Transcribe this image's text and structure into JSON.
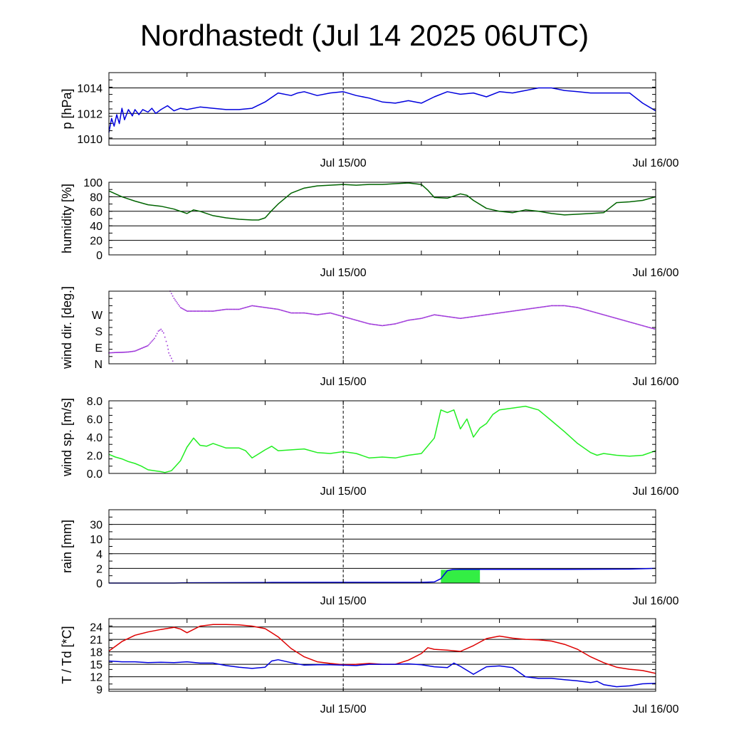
{
  "title": "Nordhastedt (Jul 14 2025 06UTC)",
  "colors": {
    "pressure": "#0000dd",
    "humidity": "#006400",
    "wind_dir": "#9b30d8",
    "wind_speed": "#22ee22",
    "rain_bar": "#33ee44",
    "rain_cum": "#0000dd",
    "temperature": "#dd0000",
    "dewpoint": "#0000dd"
  },
  "chart_data": [
    {
      "type": "line",
      "ylabel": "p [hPa]",
      "ylim": [
        1009.5,
        1015.2
      ],
      "yticks": [
        {
          "v": 1010,
          "label": "1010"
        },
        {
          "v": 1012,
          "label": "1012"
        },
        {
          "v": 1014,
          "label": "1014"
        }
      ],
      "x_labels": [
        {
          "h": 18,
          "label": "Jul 15/00"
        },
        {
          "h": 42,
          "label": "Jul 16/00"
        }
      ],
      "grid": true,
      "series": [
        {
          "color_key": "pressure",
          "style": "line",
          "x": [
            0,
            0.2,
            0.4,
            0.6,
            0.8,
            1,
            1.2,
            1.5,
            1.8,
            2,
            2.3,
            2.6,
            3,
            3.3,
            3.6,
            4,
            4.5,
            5,
            5.5,
            6,
            7,
            8,
            9,
            10,
            11,
            12,
            13,
            14,
            14.5,
            15,
            16,
            17,
            18,
            19,
            20,
            21,
            22,
            23,
            24,
            25,
            26,
            27,
            28,
            29,
            30,
            31,
            32,
            33,
            34,
            35,
            36,
            37,
            38,
            39,
            40,
            41,
            42
          ],
          "y": [
            1010.5,
            1011.6,
            1011.0,
            1011.9,
            1011.2,
            1012.4,
            1011.5,
            1012.3,
            1011.8,
            1012.3,
            1011.9,
            1012.3,
            1012.1,
            1012.4,
            1012.0,
            1012.3,
            1012.6,
            1012.2,
            1012.4,
            1012.3,
            1012.5,
            1012.4,
            1012.3,
            1012.3,
            1012.4,
            1012.9,
            1013.6,
            1013.4,
            1013.6,
            1013.7,
            1013.4,
            1013.6,
            1013.7,
            1013.4,
            1013.2,
            1012.9,
            1012.8,
            1013.0,
            1012.8,
            1013.3,
            1013.7,
            1013.5,
            1013.6,
            1013.3,
            1013.7,
            1013.6,
            1013.8,
            1014.0,
            1014.0,
            1013.8,
            1013.7,
            1013.6,
            1013.6,
            1013.6,
            1013.6,
            1012.8,
            1012.2
          ]
        }
      ]
    },
    {
      "type": "line",
      "ylabel": "humidity [%]",
      "ylim": [
        0,
        100
      ],
      "yticks": [
        {
          "v": 0,
          "label": "0"
        },
        {
          "v": 20,
          "label": "20"
        },
        {
          "v": 40,
          "label": "40"
        },
        {
          "v": 60,
          "label": "60"
        },
        {
          "v": 80,
          "label": "80"
        },
        {
          "v": 100,
          "label": "100"
        }
      ],
      "x_labels": [
        {
          "h": 18,
          "label": "Jul 15/00"
        },
        {
          "h": 42,
          "label": "Jul 16/00"
        }
      ],
      "grid": true,
      "series": [
        {
          "color_key": "humidity",
          "style": "line",
          "x": [
            0,
            1,
            2,
            3,
            4,
            5,
            6,
            6.5,
            7,
            8,
            9,
            10,
            11,
            11.5,
            12,
            12.5,
            13,
            14,
            15,
            16,
            17,
            18,
            19,
            20,
            21,
            22,
            23,
            24,
            24.5,
            25,
            26,
            27,
            27.5,
            28,
            29,
            30,
            31,
            32,
            33,
            34,
            35,
            36,
            37,
            38,
            38.5,
            39,
            40,
            41,
            42
          ],
          "y": [
            88,
            80,
            74,
            69,
            67,
            63,
            57,
            62,
            60,
            54,
            51,
            49,
            48,
            48,
            51,
            61,
            70,
            85,
            92,
            95,
            96,
            97,
            96,
            97,
            97,
            98,
            99,
            97,
            89,
            79,
            78,
            84,
            82,
            75,
            64,
            60,
            58,
            62,
            60,
            57,
            55,
            56,
            57,
            58,
            65,
            72,
            73,
            75,
            80
          ]
        }
      ]
    },
    {
      "type": "scatter",
      "ylabel": "wind dir. [deg.]",
      "ylim": [
        0,
        400
      ],
      "yticks": [
        {
          "v": 0,
          "label": "N"
        },
        {
          "v": 90,
          "label": "E"
        },
        {
          "v": 180,
          "label": "S"
        },
        {
          "v": 270,
          "label": "W"
        }
      ],
      "x_labels": [
        {
          "h": 18,
          "label": "Jul 15/00"
        },
        {
          "h": 42,
          "label": "Jul 16/00"
        }
      ],
      "grid": false,
      "series": [
        {
          "color_key": "wind_dir",
          "style": "dots",
          "x": [
            0,
            0.5,
            1,
            1.5,
            2,
            2.5,
            3,
            3.5,
            3.8,
            4,
            4.2,
            4.5,
            4.6,
            4.8,
            5
          ],
          "y": [
            60,
            62,
            63,
            65,
            70,
            85,
            100,
            140,
            180,
            190,
            170,
            100,
            60,
            30,
            0
          ]
        },
        {
          "color_key": "wind_dir",
          "style": "dots",
          "x": [
            4.7,
            5,
            5.5,
            6,
            7,
            8,
            9,
            10,
            11,
            12,
            13,
            14,
            15,
            16,
            17,
            18,
            19,
            20,
            21,
            22,
            23,
            24,
            25,
            26,
            27,
            28,
            29,
            30,
            31,
            32,
            33,
            34,
            35,
            36,
            37,
            38,
            39,
            40,
            41,
            42
          ],
          "y": [
            400,
            360,
            310,
            290,
            290,
            290,
            300,
            300,
            320,
            310,
            300,
            280,
            280,
            270,
            280,
            260,
            240,
            220,
            210,
            220,
            240,
            250,
            270,
            260,
            250,
            260,
            270,
            280,
            290,
            300,
            310,
            320,
            320,
            310,
            290,
            270,
            250,
            230,
            210,
            190
          ]
        }
      ]
    },
    {
      "type": "line",
      "ylabel": "wind sp. [m/s]",
      "ylim": [
        0,
        8
      ],
      "yticks": [
        {
          "v": 0,
          "label": "0.0"
        },
        {
          "v": 2,
          "label": "2.0"
        },
        {
          "v": 4,
          "label": "4.0"
        },
        {
          "v": 6,
          "label": "6.0"
        },
        {
          "v": 8,
          "label": "8.0"
        }
      ],
      "x_labels": [
        {
          "h": 18,
          "label": "Jul 15/00"
        },
        {
          "h": 42,
          "label": "Jul 16/00"
        }
      ],
      "grid": false,
      "series": [
        {
          "color_key": "wind_speed",
          "style": "line",
          "x": [
            0,
            0.5,
            1,
            1.5,
            2,
            2.5,
            3,
            3.5,
            4,
            4.3,
            4.8,
            5.5,
            6,
            6.5,
            7,
            7.5,
            8,
            9,
            10,
            10.5,
            11,
            12,
            12.5,
            13,
            14,
            15,
            16,
            17,
            18,
            19,
            20,
            21,
            22,
            23,
            24,
            25,
            25.5,
            26,
            26.5,
            27,
            27.5,
            28,
            28.5,
            29,
            29.5,
            30,
            31,
            32,
            33,
            34,
            35,
            36,
            37,
            37.5,
            38,
            39,
            40,
            41,
            42
          ],
          "y": [
            2.1,
            1.8,
            1.6,
            1.3,
            1.1,
            0.8,
            0.4,
            0.3,
            0.2,
            0.1,
            0.3,
            1.4,
            2.9,
            3.9,
            3.1,
            3.0,
            3.3,
            2.8,
            2.8,
            2.5,
            1.7,
            2.6,
            3.0,
            2.5,
            2.6,
            2.7,
            2.3,
            2.2,
            2.4,
            2.2,
            1.7,
            1.8,
            1.7,
            2.0,
            2.2,
            3.9,
            7.0,
            6.7,
            7.0,
            4.9,
            6.0,
            4.0,
            5.0,
            5.5,
            6.5,
            7.0,
            7.2,
            7.4,
            7.0,
            5.8,
            4.6,
            3.3,
            2.3,
            2.0,
            2.2,
            2.0,
            1.9,
            2.0,
            2.5
          ]
        }
      ]
    },
    {
      "type": "bar",
      "ylabel": "rain [mm]",
      "ylim": [
        0,
        5
      ],
      "yticks": [
        {
          "v": 0,
          "label": "0"
        },
        {
          "v": 1,
          "label": "2"
        },
        {
          "v": 2,
          "label": "4"
        },
        {
          "v": 3,
          "label": "10"
        },
        {
          "v": 4,
          "label": "30"
        }
      ],
      "x_labels": [
        {
          "h": 18,
          "label": "Jul 15/00"
        },
        {
          "h": 42,
          "label": "Jul 16/00"
        }
      ],
      "grid": true,
      "bars": [
        {
          "x0": 25.5,
          "x1": 28.5,
          "value": 0.9,
          "color_key": "rain_bar"
        }
      ],
      "series": [
        {
          "color_key": "rain_cum",
          "style": "line",
          "x": [
            0,
            5,
            6,
            12,
            18,
            24,
            25,
            25.5,
            26,
            26.4,
            27,
            30,
            35,
            40,
            42
          ],
          "y": [
            0,
            0,
            0.02,
            0.04,
            0.05,
            0.05,
            0.08,
            0.3,
            0.85,
            0.92,
            0.93,
            0.93,
            0.93,
            0.95,
            1.0
          ]
        }
      ]
    },
    {
      "type": "line",
      "ylabel": "T / Td [*C]",
      "ylim": [
        8.5,
        26
      ],
      "yticks": [
        {
          "v": 9,
          "label": "9"
        },
        {
          "v": 12,
          "label": "12"
        },
        {
          "v": 15,
          "label": "15"
        },
        {
          "v": 18,
          "label": "18"
        },
        {
          "v": 21,
          "label": "21"
        },
        {
          "v": 24,
          "label": "24"
        }
      ],
      "x_labels": [
        {
          "h": 18,
          "label": "Jul 15/00"
        },
        {
          "h": 42,
          "label": "Jul 16/00"
        }
      ],
      "grid": true,
      "series": [
        {
          "color_key": "temperature",
          "style": "line",
          "x": [
            0,
            1,
            2,
            3,
            4,
            5,
            5.5,
            6,
            7,
            8,
            9,
            10,
            11,
            12,
            12.5,
            13,
            14,
            15,
            16,
            17,
            18,
            19,
            20,
            21,
            22,
            23,
            24,
            24.5,
            25,
            26,
            27,
            28,
            29,
            30,
            31,
            32,
            33,
            34,
            35,
            36,
            37,
            38,
            39,
            40,
            41,
            42
          ],
          "y": [
            18.2,
            20.5,
            22.0,
            22.8,
            23.4,
            23.9,
            23.5,
            22.6,
            24.2,
            24.6,
            24.6,
            24.5,
            24.2,
            23.6,
            22.6,
            21.6,
            18.8,
            16.8,
            15.6,
            15.2,
            14.9,
            15.0,
            15.2,
            15.0,
            15.0,
            16.0,
            17.6,
            19.0,
            18.6,
            18.4,
            18.1,
            19.5,
            21.2,
            21.8,
            21.3,
            21.0,
            20.9,
            20.6,
            19.8,
            18.6,
            16.8,
            15.4,
            14.3,
            13.8,
            13.5,
            12.8
          ]
        },
        {
          "color_key": "dewpoint",
          "style": "line",
          "x": [
            0,
            1,
            2,
            3,
            4,
            5,
            6,
            7,
            8,
            9,
            10,
            11,
            12,
            12.5,
            13,
            14,
            15,
            16,
            17,
            18,
            19,
            20,
            21,
            22,
            23,
            24,
            25,
            26,
            26.5,
            27,
            28,
            29,
            30,
            31,
            32,
            33,
            34,
            35,
            36,
            37,
            37.5,
            38,
            39,
            40,
            41,
            42
          ],
          "y": [
            15.8,
            15.6,
            15.6,
            15.4,
            15.5,
            15.4,
            15.6,
            15.3,
            15.3,
            14.7,
            14.3,
            14.0,
            14.3,
            15.8,
            16.1,
            15.4,
            14.8,
            14.9,
            14.9,
            14.8,
            14.7,
            15.0,
            15.0,
            15.0,
            15.1,
            14.9,
            14.4,
            14.2,
            15.3,
            14.5,
            12.6,
            14.4,
            14.6,
            14.2,
            12.0,
            11.6,
            11.6,
            11.3,
            11.0,
            10.6,
            10.9,
            10.1,
            9.6,
            9.8,
            10.3,
            10.4
          ]
        }
      ]
    }
  ]
}
